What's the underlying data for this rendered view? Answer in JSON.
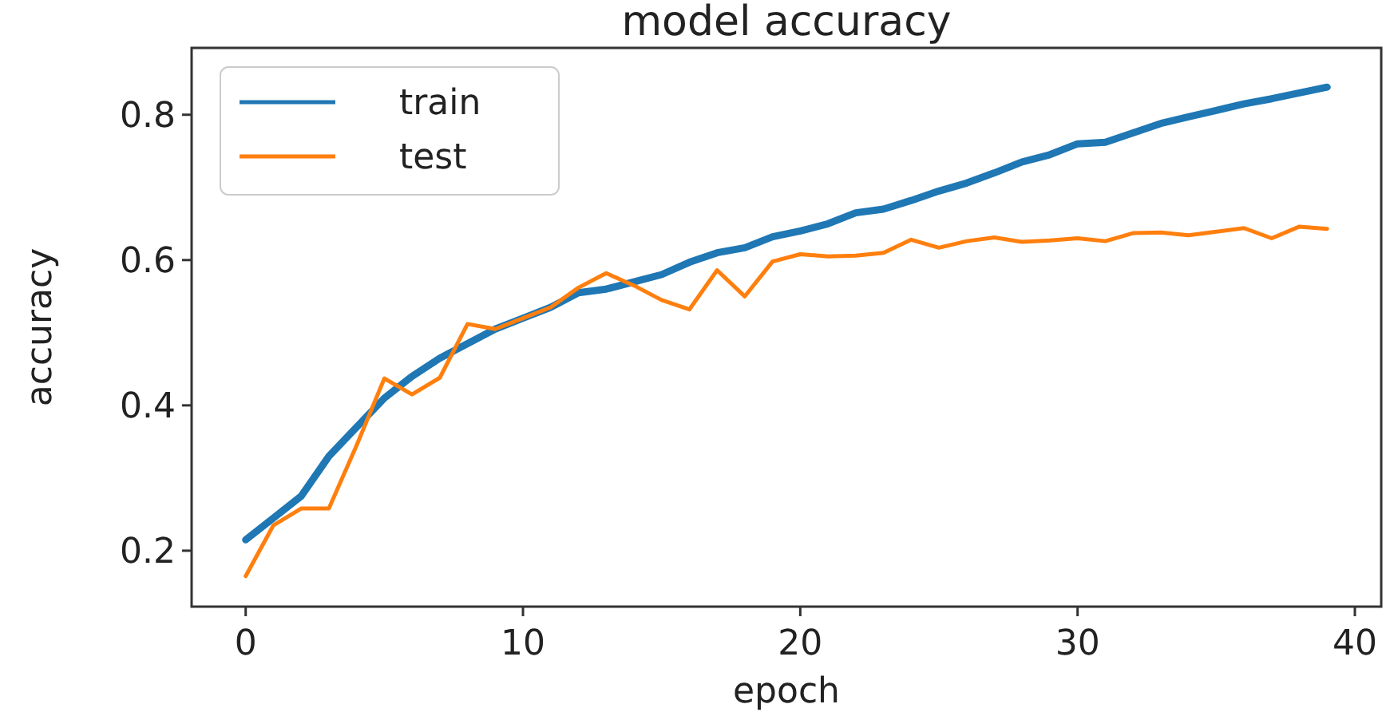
{
  "chart_data": {
    "type": "line",
    "title": "model accuracy",
    "xlabel": "epoch",
    "ylabel": "accuracy",
    "x": [
      0,
      1,
      2,
      3,
      4,
      5,
      6,
      7,
      8,
      9,
      10,
      11,
      12,
      13,
      14,
      15,
      16,
      17,
      18,
      19,
      20,
      21,
      22,
      23,
      24,
      25,
      26,
      27,
      28,
      29,
      30,
      31,
      32,
      33,
      34,
      35,
      36,
      37,
      38,
      39
    ],
    "series": [
      {
        "name": "train",
        "color": "#1f77b4",
        "values": [
          0.215,
          0.245,
          0.275,
          0.33,
          0.37,
          0.41,
          0.44,
          0.465,
          0.485,
          0.505,
          0.52,
          0.535,
          0.555,
          0.56,
          0.57,
          0.58,
          0.597,
          0.61,
          0.617,
          0.632,
          0.64,
          0.65,
          0.665,
          0.67,
          0.682,
          0.695,
          0.706,
          0.72,
          0.735,
          0.745,
          0.76,
          0.762,
          0.775,
          0.788,
          0.797,
          0.806,
          0.815,
          0.822,
          0.83,
          0.838
        ]
      },
      {
        "name": "test",
        "color": "#ff7f0e",
        "values": [
          0.165,
          0.235,
          0.258,
          0.258,
          0.345,
          0.437,
          0.415,
          0.438,
          0.512,
          0.505,
          0.52,
          0.535,
          0.562,
          0.582,
          0.565,
          0.545,
          0.532,
          0.586,
          0.55,
          0.598,
          0.608,
          0.605,
          0.606,
          0.61,
          0.628,
          0.617,
          0.626,
          0.631,
          0.625,
          0.627,
          0.63,
          0.626,
          0.637,
          0.638,
          0.634,
          0.639,
          0.644,
          0.63,
          0.646,
          0.643
        ]
      }
    ],
    "xlim": [
      -1.95,
      40.95
    ],
    "ylim": [
      0.123,
      0.892
    ],
    "xticks": [
      0,
      10,
      20,
      30,
      40
    ],
    "yticks": [
      0.2,
      0.4,
      0.6,
      0.8
    ],
    "legend": "top left",
    "grid": false,
    "marker": "none",
    "line_style": "solid"
  }
}
